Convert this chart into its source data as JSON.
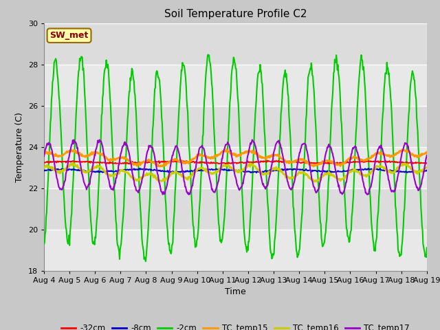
{
  "title": "Soil Temperature Profile C2",
  "xlabel": "Time",
  "ylabel": "Temperature (C)",
  "ylim": [
    18,
    30
  ],
  "yticks": [
    18,
    20,
    22,
    24,
    26,
    28,
    30
  ],
  "n_days": 15,
  "xtick_labels": [
    "Aug 4",
    "Aug 5",
    "Aug 6",
    "Aug 7",
    "Aug 8",
    "Aug 9",
    "Aug 10",
    "Aug 11",
    "Aug 12",
    "Aug 13",
    "Aug 14",
    "Aug 15",
    "Aug 16",
    "Aug 17",
    "Aug 18",
    "Aug 19"
  ],
  "legend_labels": [
    "-32cm",
    "-8cm",
    "-2cm",
    "TC_temp15",
    "TC_temp16",
    "TC_temp17"
  ],
  "line_colors": [
    "#ff0000",
    "#0000cc",
    "#00cc00",
    "#ff9900",
    "#cccc00",
    "#9900cc"
  ],
  "annotation_text": "SW_met",
  "annotation_color": "#8b0000",
  "annotation_bg": "#ffffaa",
  "fig_bg": "#c8c8c8",
  "plot_bg": "#dcdcdc",
  "band_light": "#e8e8e8",
  "band_dark": "#d0d0d0"
}
